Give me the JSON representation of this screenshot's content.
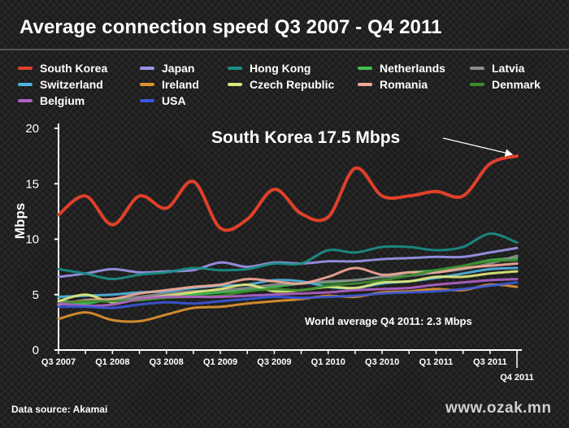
{
  "chart_data": {
    "type": "line",
    "title": "Average connection speed Q3 2007 - Q4 2011",
    "ylabel": "Mbps",
    "xlabel": "",
    "ylim": [
      0,
      20
    ],
    "yticks": [
      "0",
      "5",
      "10",
      "15",
      "20"
    ],
    "x": [
      "Q3 2007",
      "Q4 2007",
      "Q1 2008",
      "Q2 2008",
      "Q3 2008",
      "Q4 2008",
      "Q1 2009",
      "Q2 2009",
      "Q3 2009",
      "Q4 2009",
      "Q1 2010",
      "Q2 2010",
      "Q3 2010",
      "Q4 2010",
      "Q1 2011",
      "Q2 2011",
      "Q3 2011",
      "Q4 2011"
    ],
    "xtick_labels": [
      "Q3 2007",
      "Q1 2008",
      "Q3 2008",
      "Q1 2009",
      "Q3 2009",
      "Q1 2010",
      "Q3 2010",
      "Q1 2011",
      "Q3 2011"
    ],
    "last_tick_label": "Q4 2011",
    "legend_position": "top",
    "grid": false,
    "series": [
      {
        "name": "South Korea",
        "color": "#e0402a",
        "values": [
          12.2,
          13.9,
          11.3,
          13.9,
          12.8,
          15.2,
          11.0,
          11.8,
          14.5,
          12.3,
          12.0,
          16.4,
          13.9,
          13.9,
          14.3,
          13.9,
          16.8,
          17.5
        ]
      },
      {
        "name": "Japan",
        "color": "#9a95e8",
        "values": [
          6.6,
          6.9,
          7.3,
          7.0,
          7.1,
          7.2,
          7.9,
          7.5,
          7.9,
          7.8,
          8.0,
          8.0,
          8.2,
          8.3,
          8.4,
          8.4,
          8.8,
          9.2
        ]
      },
      {
        "name": "Hong Kong",
        "color": "#1a8f86",
        "values": [
          7.3,
          6.9,
          6.4,
          6.8,
          7.0,
          7.4,
          7.2,
          7.3,
          7.8,
          7.8,
          9.0,
          8.8,
          9.3,
          9.3,
          9.0,
          9.3,
          10.5,
          9.7
        ]
      },
      {
        "name": "Netherlands",
        "color": "#3fbf4e",
        "values": [
          4.5,
          4.2,
          4.6,
          4.5,
          4.8,
          5.0,
          5.2,
          5.4,
          5.7,
          6.0,
          6.1,
          6.3,
          6.6,
          7.0,
          7.2,
          7.6,
          8.1,
          8.3
        ]
      },
      {
        "name": "Latvia",
        "color": "#8c8c8c",
        "values": [
          4.3,
          4.4,
          4.6,
          4.8,
          5.1,
          5.3,
          5.4,
          5.6,
          5.9,
          6.0,
          6.2,
          6.3,
          6.6,
          6.7,
          7.0,
          7.3,
          7.8,
          8.5
        ]
      },
      {
        "name": "Switzerland",
        "color": "#4fb3e0",
        "values": [
          4.8,
          4.9,
          5.0,
          5.2,
          5.3,
          5.6,
          5.8,
          5.9,
          6.3,
          6.2,
          5.7,
          5.6,
          6.0,
          6.2,
          6.5,
          6.9,
          7.3,
          7.4
        ]
      },
      {
        "name": "Ireland",
        "color": "#e0922f",
        "values": [
          2.8,
          3.4,
          2.7,
          2.6,
          3.2,
          3.8,
          3.9,
          4.2,
          4.4,
          4.6,
          4.9,
          4.8,
          5.2,
          5.3,
          5.5,
          5.4,
          5.9,
          5.7
        ]
      },
      {
        "name": "Czech Republic",
        "color": "#dde87a",
        "values": [
          4.4,
          5.0,
          4.3,
          4.6,
          4.9,
          5.2,
          5.5,
          5.9,
          5.3,
          5.4,
          5.7,
          5.6,
          6.1,
          6.2,
          6.6,
          6.6,
          6.9,
          7.1
        ]
      },
      {
        "name": "Romania",
        "color": "#f0a898",
        "values": [
          4.1,
          4.5,
          4.6,
          5.1,
          5.4,
          5.7,
          5.9,
          6.4,
          6.2,
          6.0,
          6.6,
          7.4,
          6.8,
          7.0,
          7.0,
          7.4,
          7.6,
          7.8
        ]
      },
      {
        "name": "Denmark",
        "color": "#3c8b2e",
        "values": [
          4.2,
          4.4,
          4.4,
          4.5,
          4.7,
          4.8,
          4.9,
          5.3,
          5.5,
          5.4,
          5.8,
          6.0,
          6.3,
          6.7,
          7.2,
          7.6,
          8.0,
          8.1
        ]
      },
      {
        "name": "Belgium",
        "color": "#b061c6",
        "values": [
          4.2,
          4.0,
          4.1,
          4.6,
          4.8,
          4.8,
          4.8,
          4.9,
          5.0,
          5.1,
          5.2,
          5.4,
          5.5,
          5.6,
          5.9,
          6.1,
          6.3,
          6.4
        ]
      },
      {
        "name": "USA",
        "color": "#3a58d6",
        "values": [
          3.9,
          3.9,
          3.8,
          4.1,
          4.3,
          4.2,
          4.4,
          4.6,
          4.8,
          4.7,
          4.8,
          4.9,
          5.1,
          5.2,
          5.3,
          5.5,
          5.8,
          6.1
        ]
      }
    ],
    "annotations": [
      {
        "text": "South Korea 17.5 Mbps",
        "series": "South Korea",
        "x": "Q4 2011",
        "y": 17.5
      },
      {
        "text": "World average Q4 2011: 2.3 Mbps"
      }
    ]
  },
  "footer": {
    "source": "Data source: Akamai",
    "watermark": "www.ozak.mn"
  }
}
